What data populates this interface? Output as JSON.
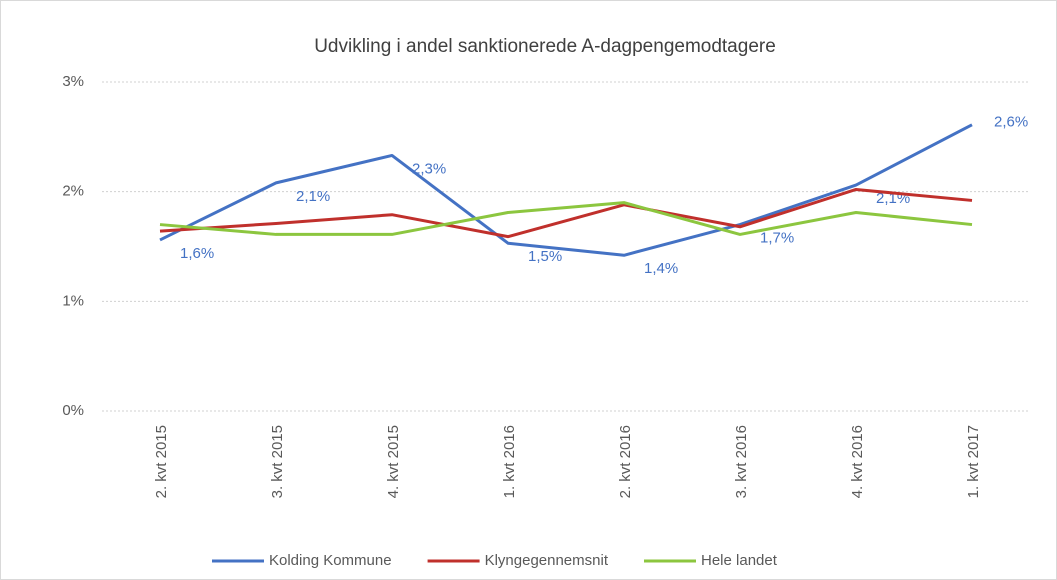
{
  "chart_data": {
    "type": "line",
    "title": "Udvikling i andel sanktionerede A-dagpengemodtagere",
    "categories": [
      "2. kvt 2015",
      "3. kvt 2015",
      "4. kvt 2015",
      "1. kvt 2016",
      "2. kvt 2016",
      "3. kvt 2016",
      "4. kvt 2016",
      "1. kvt 2017"
    ],
    "series": [
      {
        "name": "Kolding Kommune",
        "color": "#4472c4",
        "values": [
          1.56,
          2.08,
          2.33,
          1.53,
          1.42,
          1.7,
          2.06,
          2.61
        ],
        "value_labels": [
          "1,6%",
          "2,1%",
          "2,3%",
          "1,5%",
          "1,4%",
          "1,7%",
          "2,1%",
          "2,6%"
        ]
      },
      {
        "name": "Klyngegennemsnit",
        "color": "#c0302c",
        "values": [
          1.64,
          1.71,
          1.79,
          1.59,
          1.88,
          1.68,
          2.02,
          1.92
        ]
      },
      {
        "name": "Hele landet",
        "color": "#8cc63f",
        "values": [
          1.7,
          1.61,
          1.61,
          1.81,
          1.9,
          1.61,
          1.81,
          1.7
        ]
      }
    ],
    "ylim": [
      0,
      3
    ],
    "yticks": [
      {
        "value": 0,
        "label": "0%"
      },
      {
        "value": 1,
        "label": "1%"
      },
      {
        "value": 2,
        "label": "2%"
      },
      {
        "value": 3,
        "label": "3%"
      }
    ],
    "grid": true,
    "legend": "bottom"
  }
}
